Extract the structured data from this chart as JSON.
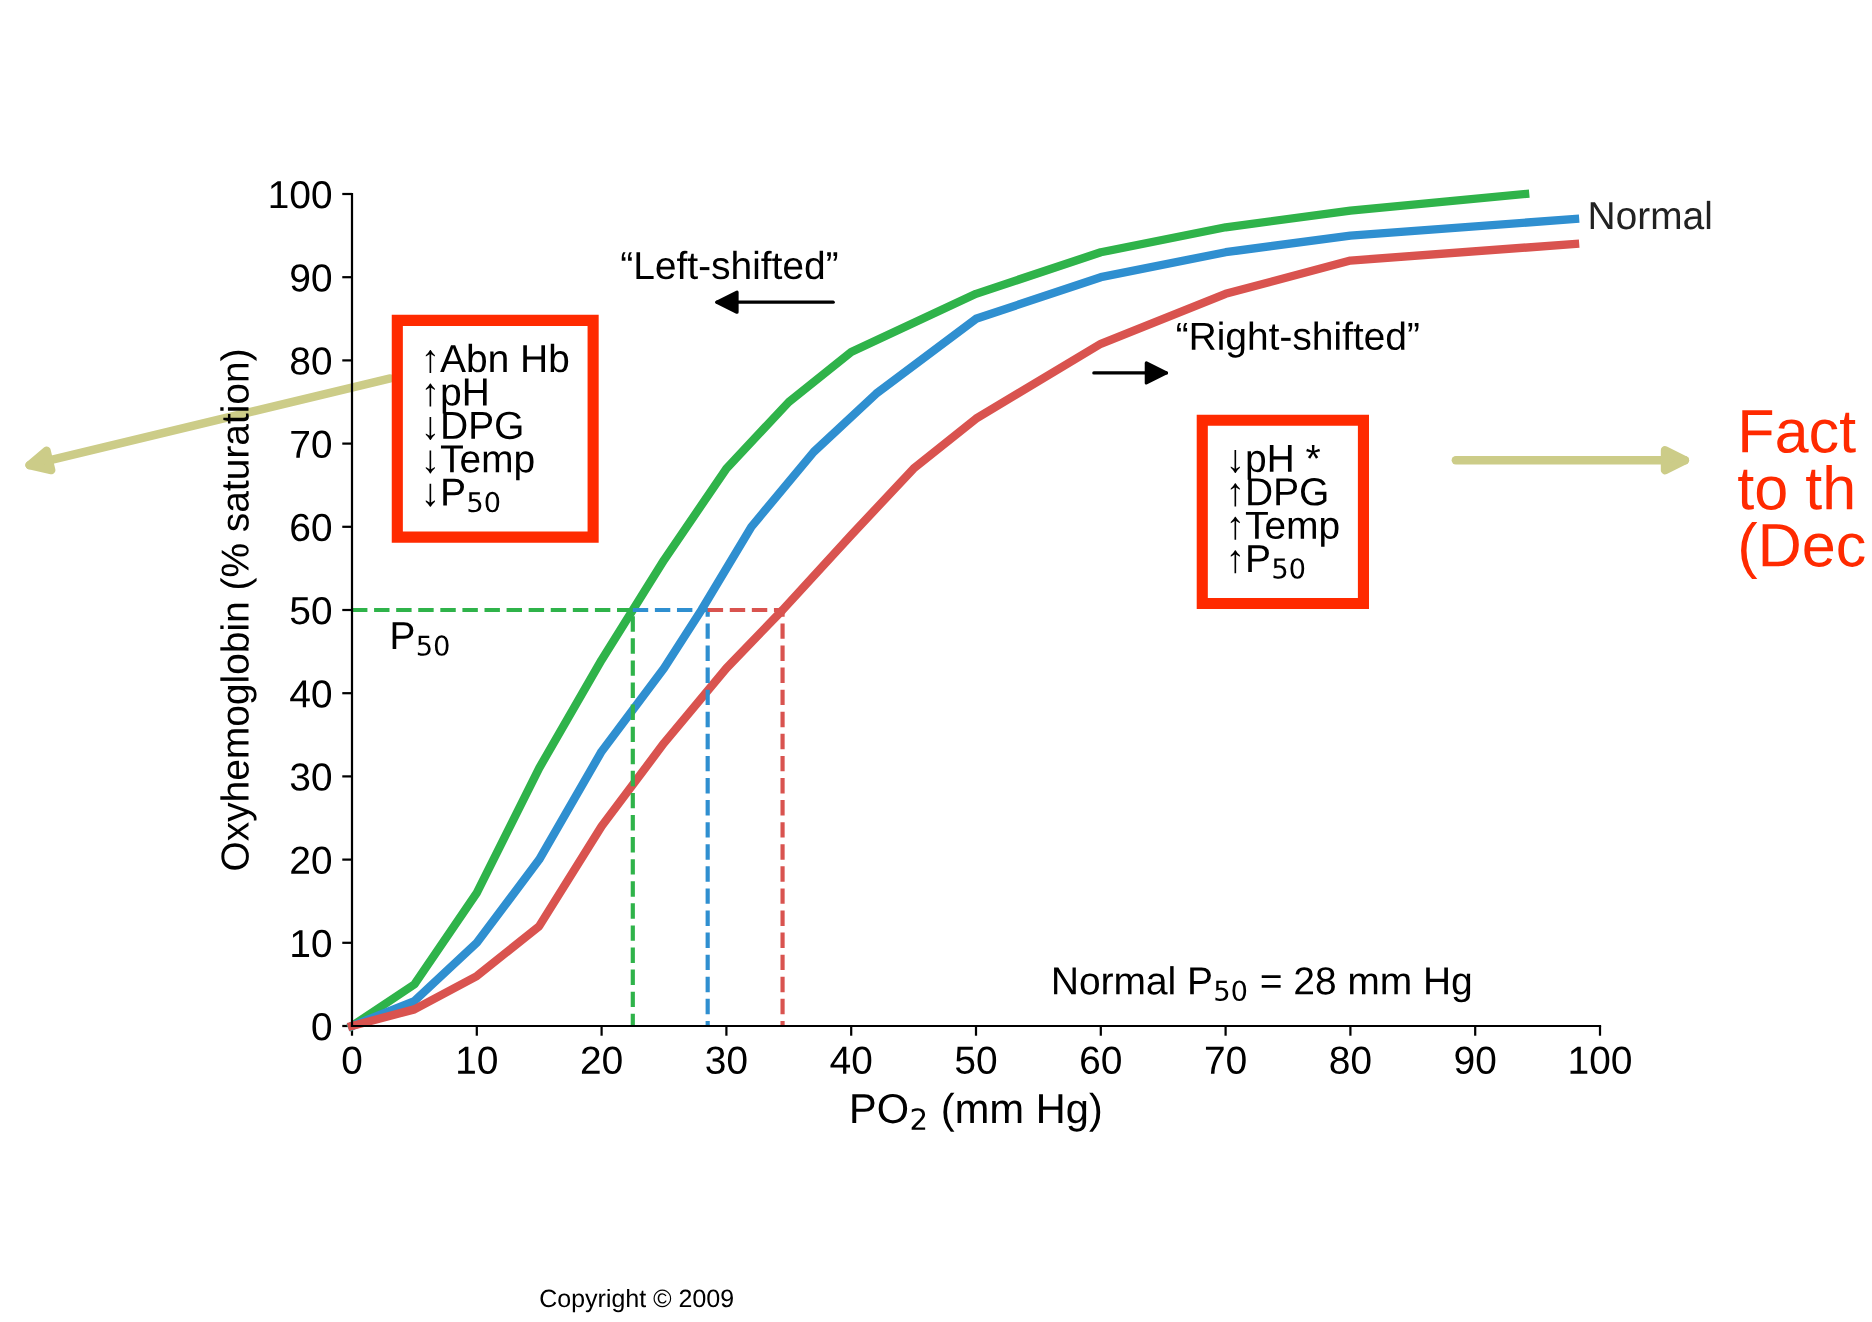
{
  "chart_data": {
    "type": "line",
    "xlabel": "PO$_{2}$ (mm Hg)",
    "ylabel": "Oxyhemoglobin (% saturation)",
    "xlim": [
      0,
      100
    ],
    "ylim": [
      0,
      100
    ],
    "xticks": [
      0,
      10,
      20,
      30,
      40,
      50,
      60,
      70,
      80,
      90,
      100
    ],
    "yticks": [
      0,
      10,
      20,
      30,
      40,
      50,
      60,
      70,
      80,
      90,
      100
    ],
    "grid": false,
    "legend": false,
    "marker": "none",
    "line_style": "solid",
    "series": [
      {
        "color": "#2fb34a",
        "x": [
          0,
          5,
          10,
          15,
          20,
          22.5,
          25,
          30,
          35,
          40,
          50,
          60,
          70,
          80,
          94
        ],
        "values": [
          0,
          5,
          16,
          31,
          44,
          50,
          56,
          67,
          75,
          81,
          88,
          93,
          96,
          98,
          100
        ]
      },
      {
        "name": "Normal",
        "color": "#2f8fd0",
        "x": [
          0,
          5,
          10,
          15,
          20,
          25,
          28,
          32,
          37,
          42,
          50,
          60,
          70,
          80,
          98
        ],
        "values": [
          0,
          3,
          10,
          20,
          33,
          43,
          50,
          60,
          69,
          76,
          85,
          90,
          93,
          95,
          97
        ]
      },
      {
        "color": "#d9534f",
        "x": [
          0,
          5,
          10,
          15,
          20,
          25,
          30,
          34.5,
          40,
          45,
          50,
          60,
          70,
          80,
          98
        ],
        "values": [
          0,
          2,
          6,
          12,
          24,
          34,
          43,
          50,
          59,
          67,
          73,
          82,
          88,
          92,
          94
        ]
      },
      {
        "color": "#2fb34a",
        "line_style": "dashed",
        "x": [
          0,
          22.5,
          22.5
        ],
        "values": [
          50,
          50,
          0
        ]
      },
      {
        "color": "#2f8fd0",
        "line_style": "dashed",
        "x": [
          22.5,
          28.5,
          28.5
        ],
        "values": [
          50,
          50,
          0
        ]
      },
      {
        "color": "#d9534f",
        "line_style": "dashed",
        "x": [
          28.5,
          34.5,
          34.5
        ],
        "values": [
          50,
          50,
          0
        ]
      }
    ],
    "annotations": [
      "↑Abn Hb\n↑pH\n↓DPG\n↓Temp\n↓P$_{50}$",
      "↓pH *\n↑DPG\n↑Temp\n↑P$_{50}$",
      "“Left-shifted”",
      "“Right-shifted”",
      "P$_{50}$",
      "Normal P$_{50}$ = 28 mm Hg",
      "Fact\nto th\n(Dec",
      "Copyright © 2009"
    ]
  }
}
